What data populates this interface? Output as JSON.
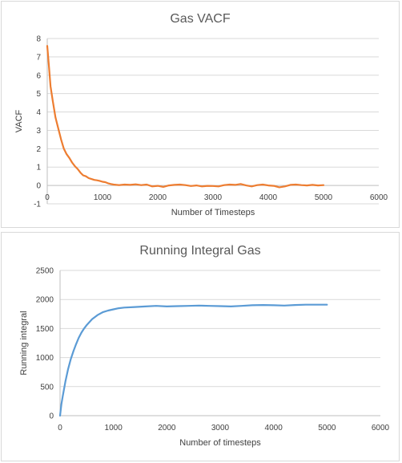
{
  "chart_data": [
    {
      "type": "line",
      "title": "Gas VACF",
      "xlabel": "Number  of Timesteps",
      "ylabel": "VACF",
      "xlim": [
        0,
        6000
      ],
      "ylim": [
        -1,
        8
      ],
      "xticks": [
        0,
        1000,
        2000,
        3000,
        4000,
        5000,
        6000
      ],
      "yticks": [
        -1,
        0,
        1,
        2,
        3,
        4,
        5,
        6,
        7,
        8
      ],
      "grid": true,
      "series": [
        {
          "color": "#ed7d31",
          "x": [
            0,
            30,
            60,
            100,
            150,
            200,
            250,
            300,
            350,
            400,
            450,
            500,
            550,
            600,
            650,
            700,
            750,
            800,
            850,
            900,
            950,
            1000,
            1050,
            1100,
            1150,
            1200,
            1300,
            1400,
            1500,
            1600,
            1700,
            1800,
            1900,
            2000,
            2100,
            2200,
            2300,
            2400,
            2500,
            2600,
            2700,
            2800,
            2900,
            3000,
            3100,
            3200,
            3300,
            3400,
            3500,
            3600,
            3700,
            3800,
            3900,
            4000,
            4100,
            4200,
            4300,
            4400,
            4500,
            4600,
            4700,
            4800,
            4900,
            5000
          ],
          "y": [
            7.6,
            6.5,
            5.4,
            4.6,
            3.7,
            3.1,
            2.5,
            2.0,
            1.7,
            1.5,
            1.25,
            1.05,
            0.9,
            0.7,
            0.55,
            0.5,
            0.4,
            0.35,
            0.3,
            0.28,
            0.25,
            0.2,
            0.18,
            0.12,
            0.08,
            0.05,
            0.02,
            0.05,
            0.03,
            0.06,
            0.02,
            0.05,
            -0.05,
            -0.02,
            -0.08,
            0.0,
            0.03,
            0.05,
            0.02,
            -0.03,
            0.0,
            -0.05,
            -0.02,
            -0.03,
            -0.05,
            0.02,
            0.05,
            0.03,
            0.08,
            0.0,
            -0.05,
            0.02,
            0.05,
            0.0,
            -0.02,
            -0.1,
            -0.05,
            0.03,
            0.05,
            0.02,
            0.0,
            0.03,
            0.0,
            0.02
          ]
        }
      ]
    },
    {
      "type": "line",
      "title": "Running Integral Gas",
      "xlabel": "Number  of timesteps",
      "ylabel": "Running integral",
      "xlim": [
        0,
        6000
      ],
      "ylim": [
        0,
        2500
      ],
      "xticks": [
        0,
        1000,
        2000,
        3000,
        4000,
        5000,
        6000
      ],
      "yticks": [
        0,
        500,
        1000,
        1500,
        2000,
        2500
      ],
      "grid": true,
      "series": [
        {
          "color": "#5b9bd5",
          "x": [
            0,
            25,
            50,
            100,
            150,
            200,
            250,
            300,
            350,
            400,
            450,
            500,
            600,
            700,
            800,
            900,
            1000,
            1100,
            1200,
            1400,
            1600,
            1800,
            2000,
            2200,
            2400,
            2600,
            2800,
            3000,
            3200,
            3400,
            3600,
            3800,
            4000,
            4200,
            4400,
            4600,
            4800,
            5000
          ],
          "y": [
            0,
            200,
            330,
            590,
            800,
            970,
            1110,
            1230,
            1340,
            1430,
            1500,
            1560,
            1660,
            1730,
            1780,
            1810,
            1830,
            1850,
            1860,
            1870,
            1880,
            1890,
            1880,
            1885,
            1890,
            1895,
            1890,
            1885,
            1880,
            1890,
            1900,
            1905,
            1900,
            1895,
            1905,
            1910,
            1910,
            1910
          ]
        }
      ]
    }
  ]
}
